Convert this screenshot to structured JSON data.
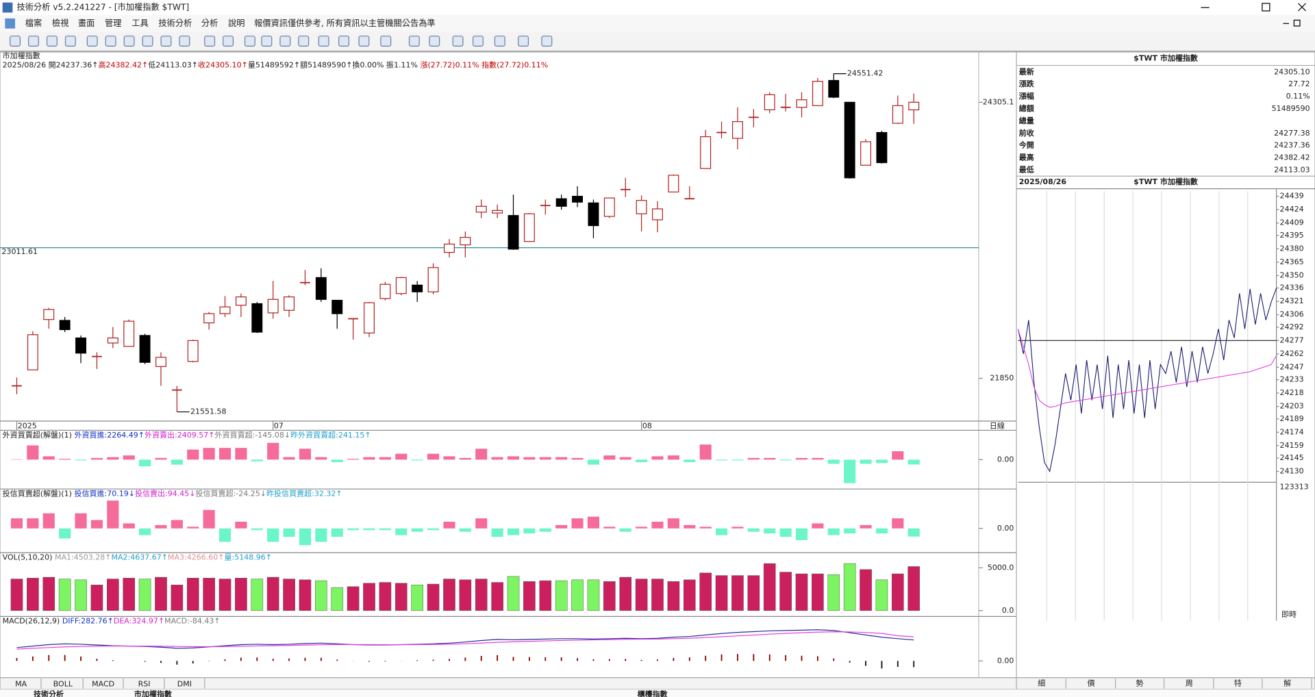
{
  "window": {
    "title": "技術分析 v5.2.241227 - [市加權指數 $TWT]",
    "menu": [
      "檔案",
      "檢視",
      "畫面",
      "管理",
      "工具",
      "技術分析",
      "分析",
      "說明",
      "報價資訊僅供參考, 所有資訊以主管機關公告為準"
    ]
  },
  "tabs": [
    "MA",
    "BOLL",
    "MACD",
    "RSI",
    "DMI"
  ],
  "right_tabs": [
    "細",
    "價",
    "勢",
    "周",
    "特",
    "解"
  ],
  "status": [
    "技術分析",
    "市加權指數",
    "櫃檯指數"
  ],
  "quote": {
    "title": "$TWT 市加權指數",
    "rows": [
      {
        "label": "最新",
        "value": "24305.10",
        "color": "#b00000"
      },
      {
        "label": "漲跌",
        "value": "27.72",
        "color": "#b00000"
      },
      {
        "label": "漲幅",
        "value": "0.11%",
        "color": "#b00000"
      },
      {
        "label": "總額",
        "value": "51489590",
        "color": "#000000"
      },
      {
        "label": "總量"
      },
      {
        "label": "前收",
        "value": "24277.38",
        "color": "#000000"
      },
      {
        "label": "今開",
        "value": "24237.36",
        "color": "#007a00"
      },
      {
        "label": "最高",
        "value": "24382.42",
        "color": "#b00000"
      },
      {
        "label": "最低",
        "value": "24113.03",
        "color": "#007a00"
      }
    ]
  },
  "chart_data": [
    {
      "type": "candlestick",
      "title": "市加權指數",
      "period": "日線",
      "info": [
        {
          "text": "2025/08/26 開24237.36↑",
          "color": "#222222"
        },
        {
          "text": "高24382.42↑",
          "color": "#c00000"
        },
        {
          "text": "低24113.03↑",
          "color": "#222222"
        },
        {
          "text": "收24305.10↑",
          "color": "#c00000"
        },
        {
          "text": "量51489592↑額51489590↑換0.00% 振1.11% ",
          "color": "#222222"
        },
        {
          "text": "漲(27.72)0.11% 指數(27.72)0.11%",
          "color": "#c00000"
        }
      ],
      "categories": [
        "2025",
        null,
        null,
        null,
        null,
        null,
        null,
        null,
        null,
        null,
        null,
        null,
        null,
        null,
        null,
        null,
        "07",
        null,
        null,
        null,
        null,
        null,
        null,
        null,
        null,
        null,
        null,
        null,
        null,
        null,
        null,
        null,
        null,
        null,
        null,
        null,
        null,
        null,
        null,
        "08",
        null,
        null,
        null,
        null,
        null,
        null,
        null,
        null,
        null,
        null,
        null,
        null,
        null,
        null,
        null,
        null,
        null
      ],
      "open": [
        21783,
        21925,
        22373,
        22365,
        22209,
        22044,
        22164,
        22134,
        22231,
        21955,
        21746,
        22000,
        22343,
        22425,
        22500,
        22514,
        22432,
        22455,
        22701,
        22746,
        22544,
        22380,
        22253,
        22559,
        22604,
        22679,
        22619,
        22970,
        23037,
        23328,
        23320,
        23298,
        23067,
        23387,
        23447,
        23469,
        23410,
        23290,
        23529,
        23313,
        23260,
        23507,
        23447,
        23716,
        24036,
        23984,
        24171,
        24238,
        24260,
        24260,
        24275,
        24499,
        24305,
        23745,
        24036,
        24118,
        24237.36
      ],
      "close": [
        21783,
        22238,
        22462,
        22283,
        22074,
        22044,
        22209,
        22358,
        21992,
        22037,
        21746,
        22186,
        22425,
        22485,
        22574,
        22261,
        22552,
        22574,
        22701,
        22552,
        22425,
        22380,
        22522,
        22686,
        22746,
        22619,
        22835,
        23044,
        23104,
        23380,
        23343,
        22999,
        23313,
        23387,
        23380,
        23417,
        23208,
        23454,
        23529,
        23432,
        23357,
        23656,
        23447,
        23999,
        24036,
        24133,
        24171,
        24372,
        24260,
        24327,
        24491,
        24350,
        23633,
        23954,
        23768,
        24275,
        24305.1
      ],
      "high": [
        21858,
        22268,
        22477,
        22395,
        22231,
        22082,
        22306,
        22373,
        22246,
        22082,
        21783,
        22194,
        22440,
        22582,
        22604,
        22529,
        22716,
        22589,
        22813,
        22828,
        22544,
        22380,
        22529,
        22708,
        22753,
        22716,
        22873,
        23089,
        23156,
        23440,
        23395,
        23484,
        23320,
        23440,
        23484,
        23559,
        23440,
        23454,
        23633,
        23477,
        23425,
        23663,
        23559,
        24059,
        24133,
        24260,
        24245,
        24394,
        24379,
        24394,
        24521,
        24551.42,
        24305,
        23977,
        24051,
        24365,
        24382.42
      ],
      "low": [
        21709,
        21925,
        22291,
        22261,
        21985,
        21933,
        22119,
        22134,
        21977,
        21783,
        21551.58,
        21992,
        22283,
        22395,
        22395,
        22253,
        22380,
        22395,
        22679,
        22529,
        22291,
        22194,
        22216,
        22544,
        22589,
        22529,
        22597,
        22925,
        22925,
        23275,
        23275,
        22992,
        23067,
        23305,
        23350,
        23372,
        23096,
        23275,
        23462,
        23156,
        23149,
        23507,
        23447,
        23716,
        23984,
        23887,
        24081,
        24208,
        24223,
        24171,
        24275,
        24342,
        23626,
        23745,
        23760,
        24111,
        24113.03
      ],
      "up_color": "#b22222",
      "down_color": "#000000",
      "ylim": [
        21470,
        24752
      ],
      "yticks": [
        24305.1,
        21850
      ],
      "ytick_colors": [
        "#c00000",
        "#555555"
      ],
      "ref_line": 23011.61,
      "ref_color": "#2e8b8b"
    },
    {
      "type": "bar",
      "info": [
        {
          "text": "外資買賣超(解盤)(1) ",
          "color": "#222222"
        },
        {
          "text": "外資買進:2264.49↑",
          "color": "#1030c0"
        },
        {
          "text": "外資賣出:2409.57↑",
          "color": "#d020d0"
        },
        {
          "text": "外資買賣超:-145.08↓",
          "color": "#777777"
        },
        {
          "text": "昨外資買賣超:241.15↑",
          "color": "#20a0d0"
        }
      ],
      "values": [
        10,
        425,
        100,
        25,
        -25,
        50,
        75,
        125,
        -200,
        50,
        -150,
        300,
        350,
        350,
        350,
        -50,
        500,
        75,
        325,
        75,
        -75,
        25,
        75,
        75,
        175,
        -25,
        175,
        100,
        50,
        325,
        75,
        100,
        75,
        75,
        75,
        50,
        -150,
        125,
        75,
        -75,
        100,
        125,
        -75,
        450,
        -25,
        -25,
        50,
        50,
        -25,
        50,
        50,
        -125,
        -700,
        -125,
        -100,
        250,
        -145.08
      ],
      "pos_color": "#f56b9a",
      "neg_color": "#6cf5c8",
      "ylim": [
        -875,
        875
      ],
      "yticks": [
        {
          "value": 0,
          "label": "0.00"
        }
      ]
    },
    {
      "type": "bar",
      "info": [
        {
          "text": "投信買賣超(解盤)(1) ",
          "color": "#222222"
        },
        {
          "text": "投信買進:70.19↓",
          "color": "#1030c0"
        },
        {
          "text": "投信賣出:94.45↓",
          "color": "#d020d0"
        },
        {
          "text": "投信買賣超:-24.25↓",
          "color": "#777777"
        },
        {
          "text": "昨投信買賣超:32.32↑",
          "color": "#20a0d0"
        }
      ],
      "values": [
        30,
        30,
        45,
        -30,
        45,
        25,
        83,
        15,
        -20,
        10,
        25,
        5,
        55,
        -40,
        20,
        -5,
        -40,
        -25,
        -50,
        -40,
        -25,
        -5,
        -5,
        -5,
        -20,
        -10,
        -5,
        20,
        -10,
        30,
        -25,
        -20,
        -15,
        -10,
        10,
        30,
        35,
        5,
        -10,
        5,
        20,
        30,
        10,
        5,
        -20,
        5,
        -10,
        -15,
        -25,
        -35,
        15,
        -20,
        -15,
        10,
        -15,
        30,
        -24.25
      ],
      "pos_color": "#f56b9a",
      "neg_color": "#6cf5c8",
      "ylim": [
        -72.5,
        117.5
      ],
      "yticks": [
        {
          "value": 0,
          "label": "0.00"
        }
      ]
    },
    {
      "type": "volume",
      "info": [
        {
          "text": "VOL(5,10,20) ",
          "color": "#222222"
        },
        {
          "text": "MA1:4503.28↑",
          "color": "#999999"
        },
        {
          "text": "MA2:4637.67↑",
          "color": "#20a0d0"
        },
        {
          "text": "MA3:4266.60↑",
          "color": "#e09090"
        },
        {
          "text": "量:5148.96↑",
          "color": "#20a0d0"
        }
      ],
      "values": [
        3700,
        3800,
        3900,
        3700,
        3600,
        3000,
        3700,
        3800,
        3700,
        3900,
        3000,
        3800,
        3800,
        3700,
        3800,
        3700,
        3900,
        3700,
        3600,
        3500,
        2700,
        2800,
        3200,
        3300,
        3200,
        3000,
        3100,
        3700,
        3600,
        3700,
        3300,
        4000,
        3400,
        3500,
        3500,
        3600,
        3600,
        3400,
        3900,
        3700,
        3700,
        3400,
        3600,
        4400,
        4100,
        4100,
        4100,
        5500,
        4500,
        4300,
        4300,
        4200,
        5500,
        4800,
        3600,
        4300,
        5148.96
      ],
      "up_color": "#cc1f5e",
      "down_color": "#7df562",
      "ylim": [
        -686,
        6762
      ],
      "yticks": [
        {
          "value": 5000,
          "label": "5000.0"
        },
        {
          "value": 0,
          "label": "0.0"
        }
      ]
    },
    {
      "type": "macd",
      "info": [
        {
          "text": "MACD(26,12,9) ",
          "color": "#222222"
        },
        {
          "text": "DIFF:282.76↑",
          "color": "#1030c0"
        },
        {
          "text": "DEA:324.97↑",
          "color": "#d020d0"
        },
        {
          "text": "MACD:-84.43↑",
          "color": "#777777"
        }
      ],
      "series": [
        {
          "name": "DIFF",
          "color": "#2a2a9a",
          "values": [
            180,
            200,
            220,
            230,
            225,
            215,
            205,
            200,
            195,
            185,
            170,
            175,
            190,
            205,
            220,
            225,
            220,
            225,
            235,
            240,
            230,
            220,
            215,
            215,
            220,
            225,
            230,
            240,
            255,
            275,
            290,
            285,
            290,
            295,
            300,
            300,
            295,
            300,
            305,
            300,
            305,
            320,
            330,
            350,
            370,
            385,
            395,
            405,
            410,
            415,
            420,
            410,
            380,
            350,
            320,
            300,
            282.76
          ]
        },
        {
          "name": "DEA",
          "color": "#e040e0",
          "values": [
            160,
            170,
            180,
            190,
            195,
            200,
            200,
            200,
            200,
            198,
            195,
            192,
            192,
            194,
            198,
            202,
            205,
            209,
            214,
            219,
            221,
            221,
            220,
            219,
            219,
            220,
            222,
            226,
            232,
            241,
            251,
            258,
            264,
            270,
            276,
            281,
            284,
            287,
            291,
            293,
            295,
            300,
            306,
            315,
            326,
            338,
            349,
            361,
            371,
            380,
            388,
            393,
            391,
            383,
            371,
            340,
            324.97
          ]
        }
      ],
      "values": [
        40,
        60,
        80,
        80,
        60,
        30,
        10,
        0,
        -10,
        -26,
        -50,
        -34,
        -4,
        22,
        44,
        46,
        30,
        32,
        42,
        42,
        18,
        -2,
        -10,
        -8,
        2,
        10,
        16,
        28,
        46,
        68,
        78,
        54,
        52,
        50,
        48,
        38,
        22,
        26,
        28,
        14,
        20,
        40,
        48,
        70,
        88,
        94,
        92,
        88,
        78,
        70,
        64,
        34,
        -22,
        -66,
        -102,
        -80,
        -84.43
      ],
      "bar_color": "#8b0000",
      "neg_bar_color": "#111111",
      "ylim": [
        -226,
        599
      ],
      "yticks": [
        {
          "value": 0,
          "label": "0.00"
        }
      ]
    },
    {
      "type": "line",
      "title": "2025/08/26",
      "subtitle": "$TWT 市加權指數",
      "footer": "即時",
      "series": [
        {
          "color": "#1a1a6e",
          "values": [
            24290,
            24262,
            24300,
            24230,
            24180,
            24140,
            24130,
            24160,
            24200,
            24240,
            24210,
            24250,
            24195,
            24255,
            24210,
            24250,
            24200,
            24260,
            24190,
            24250,
            24200,
            24255,
            24195,
            24250,
            24190,
            24255,
            24200,
            24250,
            24240,
            24265,
            24230,
            24270,
            24225,
            24265,
            24230,
            24270,
            24240,
            24262,
            24290,
            24255,
            24300,
            24280,
            24330,
            24290,
            24335,
            24295,
            24330,
            24300,
            24320,
            24336
          ]
        },
        {
          "color": "#e040e0",
          "values": [
            24290,
            24270,
            24250,
            24225,
            24210,
            24205,
            24202,
            24203,
            24205,
            24207,
            24208,
            24209,
            24210,
            24211,
            24212,
            24213,
            24214,
            24215,
            24216,
            24217,
            24218,
            24219,
            24220,
            24221,
            24222,
            24223,
            24224,
            24225,
            24226,
            24227,
            24228,
            24229,
            24230,
            24231,
            24232,
            24233,
            24234,
            24235,
            24236,
            24237,
            24238,
            24239,
            24240,
            24241,
            24242,
            24244,
            24246,
            24248,
            24250,
            24260
          ]
        }
      ],
      "ylim": [
        24117.8,
        24444.7
      ],
      "yticks": [
        24439,
        24424,
        24409,
        24395,
        24380,
        24365,
        24350,
        24336,
        24321,
        24306,
        24292,
        24277,
        24262,
        24247,
        24233,
        24218,
        24203,
        24189,
        24174,
        24159,
        24145,
        24130
      ],
      "ref_line": 24277,
      "volume_tick": 123313
    }
  ]
}
